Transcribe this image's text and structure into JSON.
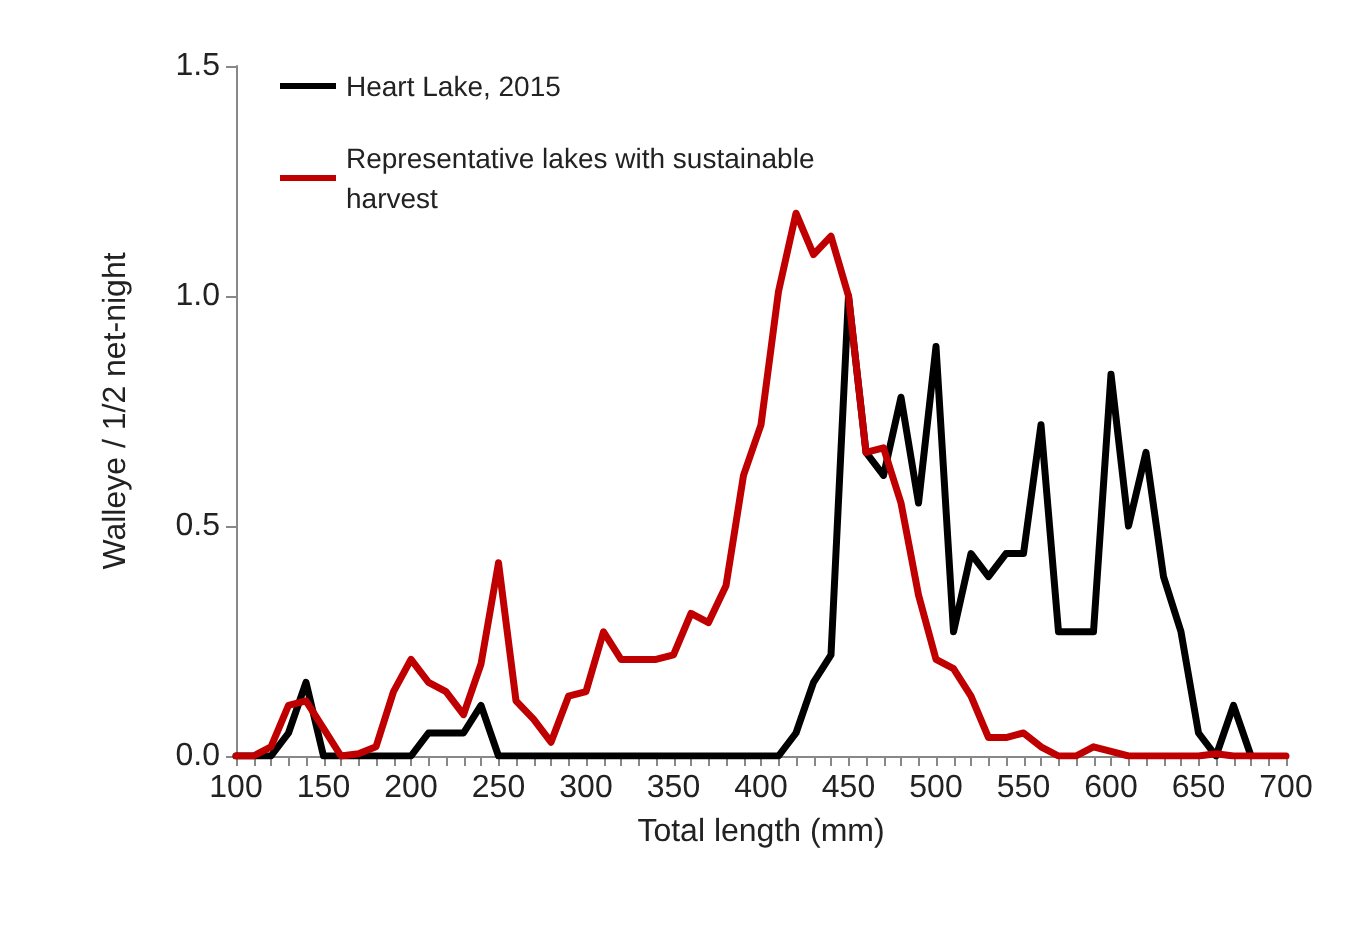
{
  "chart_data": {
    "type": "line",
    "xlabel": "Total length (mm)",
    "ylabel": "Walleye / 1/2 net-night",
    "xlim": [
      100,
      700
    ],
    "xticks": [
      100,
      {
        "value": 110,
        "label": null
      },
      {
        "value": 120,
        "label": null
      },
      {
        "value": 130,
        "label": null
      },
      {
        "value": 140,
        "label": null
      },
      150,
      {
        "value": 160,
        "label": null
      },
      {
        "value": 170,
        "label": null
      },
      {
        "value": 180,
        "label": null
      },
      {
        "value": 190,
        "label": null
      },
      200,
      {
        "value": 210,
        "label": null
      },
      {
        "value": 220,
        "label": null
      },
      {
        "value": 230,
        "label": null
      },
      {
        "value": 240,
        "label": null
      },
      250,
      {
        "value": 260,
        "label": null
      },
      {
        "value": 270,
        "label": null
      },
      {
        "value": 280,
        "label": null
      },
      {
        "value": 290,
        "label": null
      },
      300,
      {
        "value": 310,
        "label": null
      },
      {
        "value": 320,
        "label": null
      },
      {
        "value": 330,
        "label": null
      },
      {
        "value": 340,
        "label": null
      },
      350,
      {
        "value": 360,
        "label": null
      },
      {
        "value": 370,
        "label": null
      },
      {
        "value": 380,
        "label": null
      },
      {
        "value": 390,
        "label": null
      },
      400,
      {
        "value": 410,
        "label": null
      },
      {
        "value": 420,
        "label": null
      },
      {
        "value": 430,
        "label": null
      },
      {
        "value": 440,
        "label": null
      },
      450,
      {
        "value": 460,
        "label": null
      },
      {
        "value": 470,
        "label": null
      },
      {
        "value": 480,
        "label": null
      },
      {
        "value": 490,
        "label": null
      },
      500,
      {
        "value": 510,
        "label": null
      },
      {
        "value": 520,
        "label": null
      },
      {
        "value": 530,
        "label": null
      },
      {
        "value": 540,
        "label": null
      },
      550,
      {
        "value": 560,
        "label": null
      },
      {
        "value": 570,
        "label": null
      },
      {
        "value": 580,
        "label": null
      },
      {
        "value": 590,
        "label": null
      },
      600,
      {
        "value": 610,
        "label": null
      },
      {
        "value": 620,
        "label": null
      },
      {
        "value": 630,
        "label": null
      },
      {
        "value": 640,
        "label": null
      },
      650,
      {
        "value": 660,
        "label": null
      },
      {
        "value": 670,
        "label": null
      },
      {
        "value": 680,
        "label": null
      },
      {
        "value": 690,
        "label": null
      },
      700
    ],
    "ylim": [
      0,
      1.5
    ],
    "yticks": [
      {
        "value": 0,
        "label": "0.0"
      },
      {
        "value": 0.5,
        "label": "0.5"
      },
      {
        "value": 1,
        "label": "1.0"
      },
      {
        "value": 1.5,
        "label": "1.5"
      }
    ],
    "grid": false,
    "legend": "top left",
    "marker": "none",
    "line_style": "solid",
    "series": [
      {
        "name": "Heart Lake, 2015",
        "color": "#000000",
        "x": [
          100,
          110,
          120,
          130,
          140,
          150,
          160,
          170,
          180,
          190,
          200,
          210,
          220,
          230,
          240,
          250,
          260,
          270,
          280,
          290,
          300,
          310,
          320,
          330,
          340,
          350,
          360,
          370,
          380,
          390,
          400,
          410,
          420,
          430,
          440,
          450,
          460,
          470,
          480,
          490,
          500,
          510,
          520,
          530,
          540,
          550,
          560,
          570,
          580,
          590,
          600,
          610,
          620,
          630,
          640,
          650,
          660,
          670,
          680
        ],
        "values": [
          0,
          0,
          0,
          0.05,
          0.16,
          0,
          0,
          0,
          0,
          0,
          0,
          0.05,
          0.05,
          0.05,
          0.11,
          0,
          0,
          0,
          0,
          0,
          0,
          0,
          0,
          0,
          0,
          0,
          0,
          0,
          0,
          0,
          0,
          0,
          0.05,
          0.16,
          0.22,
          1.0,
          0.66,
          0.61,
          0.78,
          0.55,
          0.89,
          0.27,
          0.44,
          0.39,
          0.44,
          0.44,
          0.72,
          0.27,
          0.27,
          0.27,
          0.83,
          0.5,
          0.66,
          0.39,
          0.27,
          0.05,
          0,
          0.11,
          0
        ]
      },
      {
        "name": "Representative lakes with sustainable harvest",
        "color": "#c00000",
        "x": [
          100,
          110,
          120,
          130,
          140,
          150,
          160,
          170,
          180,
          190,
          200,
          210,
          220,
          230,
          240,
          250,
          260,
          270,
          280,
          290,
          300,
          310,
          320,
          330,
          340,
          350,
          360,
          370,
          380,
          390,
          400,
          410,
          420,
          430,
          440,
          450,
          460,
          470,
          480,
          490,
          500,
          510,
          520,
          530,
          540,
          550,
          560,
          570,
          580,
          590,
          600,
          610,
          620,
          630,
          640,
          650,
          660,
          670,
          680,
          690,
          700
        ],
        "values": [
          0,
          0,
          0.02,
          0.11,
          0.12,
          0.06,
          0,
          0.005,
          0.02,
          0.14,
          0.21,
          0.16,
          0.14,
          0.09,
          0.2,
          0.42,
          0.12,
          0.08,
          0.03,
          0.13,
          0.14,
          0.27,
          0.21,
          0.21,
          0.21,
          0.22,
          0.31,
          0.29,
          0.37,
          0.61,
          0.72,
          1.01,
          1.18,
          1.09,
          1.13,
          1.0,
          0.66,
          0.67,
          0.55,
          0.35,
          0.21,
          0.19,
          0.13,
          0.04,
          0.04,
          0.05,
          0.02,
          0,
          0,
          0.02,
          0.01,
          0,
          0,
          0,
          0,
          0,
          0.005,
          0,
          0,
          0,
          0
        ]
      }
    ]
  }
}
